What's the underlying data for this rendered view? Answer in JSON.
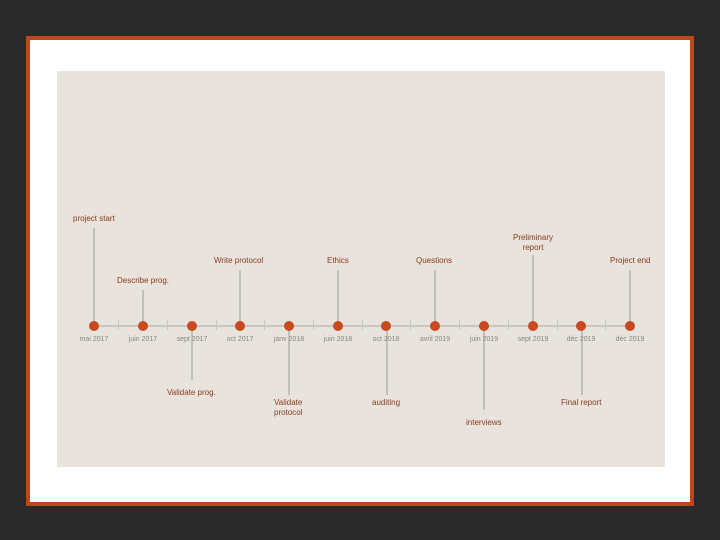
{
  "timeline": {
    "dates": [
      "mai 2017",
      "juin 2017",
      "sept 2017",
      "oct 2017",
      "janv 2018",
      "juin 2018",
      "oct 2018",
      "avril 2019",
      "juin 2019",
      "sept 2019",
      "déc 2019",
      "déc 2019"
    ],
    "events": {
      "project_start": "project start",
      "describe_prog": "Describe prog.",
      "validate_prog": "Validate prog.",
      "write_protocol": "Write protocol",
      "validate_protocol_l1": "Validate",
      "validate_protocol_l2": "protocol",
      "ethics": "Ethics",
      "auditing": "auditing",
      "questions": "Questions",
      "interviews": "interviews",
      "preliminary_report_l1": "Preliminary",
      "preliminary_report_l2": "report",
      "final_report": "Final report",
      "project_end": "Project end"
    }
  },
  "colors": {
    "accent": "#c94a1c",
    "frame": "#c0461c",
    "panel": "#e8e3dc",
    "label_text": "#8b3a1c",
    "date_text": "#8a8580"
  }
}
